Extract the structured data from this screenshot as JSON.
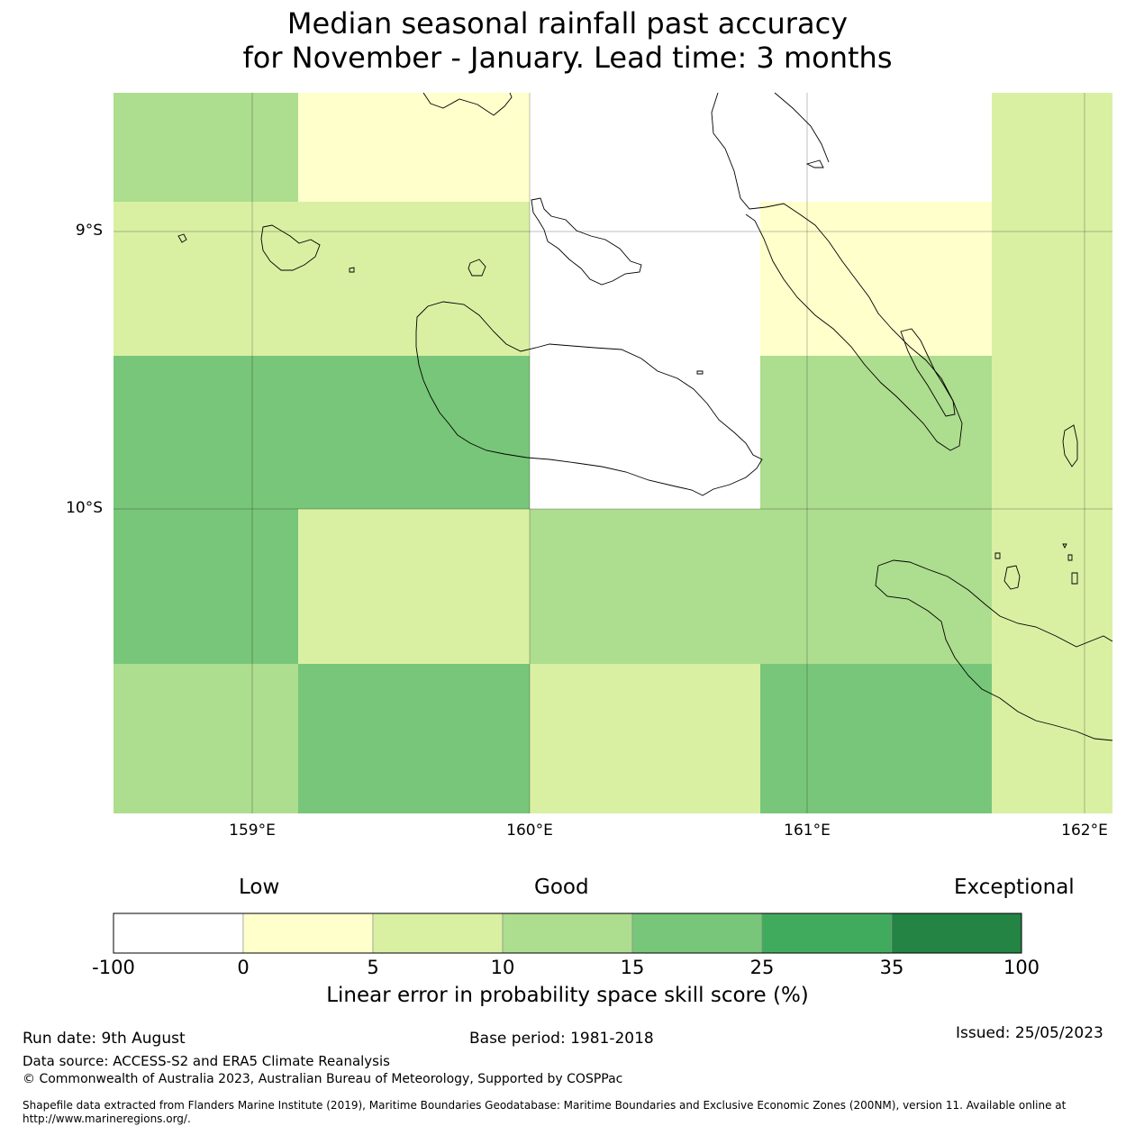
{
  "title": {
    "line1": "Median seasonal rainfall past accuracy",
    "line2": "for November - January. Lead time: 3 months"
  },
  "map": {
    "latitude_labels": [
      "9°S",
      "10°S"
    ],
    "longitude_labels": [
      "159°E",
      "160°E",
      "161°E",
      "162°E"
    ],
    "grid_cells": [
      {
        "row": 0,
        "col": 0,
        "category": "10 to 15"
      },
      {
        "row": 0,
        "col": 1,
        "category": "0 to 5"
      },
      {
        "row": 0,
        "col": 2,
        "category": "-100 to 0"
      },
      {
        "row": 0,
        "col": 3,
        "category": "-100 to 0"
      },
      {
        "row": 0,
        "col": 4,
        "category": "5 to 10"
      },
      {
        "row": 1,
        "col": 0,
        "category": "5 to 10"
      },
      {
        "row": 1,
        "col": 1,
        "category": "5 to 10"
      },
      {
        "row": 1,
        "col": 2,
        "category": "-100 to 0"
      },
      {
        "row": 1,
        "col": 3,
        "category": "0 to 5"
      },
      {
        "row": 1,
        "col": 4,
        "category": "5 to 10"
      },
      {
        "row": 2,
        "col": 0,
        "category": "15 to 25"
      },
      {
        "row": 2,
        "col": 1,
        "category": "15 to 25"
      },
      {
        "row": 2,
        "col": 2,
        "category": "-100 to 0"
      },
      {
        "row": 2,
        "col": 3,
        "category": "10 to 15"
      },
      {
        "row": 2,
        "col": 4,
        "category": "5 to 10"
      },
      {
        "row": 3,
        "col": 0,
        "category": "15 to 25"
      },
      {
        "row": 3,
        "col": 1,
        "category": "5 to 10"
      },
      {
        "row": 3,
        "col": 2,
        "category": "10 to 15"
      },
      {
        "row": 3,
        "col": 3,
        "category": "10 to 15"
      },
      {
        "row": 3,
        "col": 4,
        "category": "5 to 10"
      },
      {
        "row": 4,
        "col": 0,
        "category": "10 to 15"
      },
      {
        "row": 4,
        "col": 1,
        "category": "15 to 25"
      },
      {
        "row": 4,
        "col": 2,
        "category": "5 to 10"
      },
      {
        "row": 4,
        "col": 3,
        "category": "15 to 25"
      },
      {
        "row": 4,
        "col": 4,
        "category": "5 to 10"
      }
    ]
  },
  "legend": {
    "categories": [
      "Low",
      "Good",
      "Exceptional"
    ],
    "ticks": [
      "-100",
      "0",
      "5",
      "10",
      "15",
      "25",
      "35",
      "100"
    ],
    "colors": [
      "#ffffff",
      "#ffffcc",
      "#d9f0a3",
      "#addd8e",
      "#78c679",
      "#41ab5d",
      "#238443"
    ],
    "title": "Linear error in probability space skill score (%)"
  },
  "footer": {
    "run_date": "Run date: 9th August",
    "base_period": "Base period: 1981-2018",
    "issued": "Issued: 25/05/2023",
    "data_source": "Data source: ACCESS-S2 and ERA5 Climate Reanalysis",
    "copyright": "© Commonwealth of Australia 2023, Australian Bureau of Meteorology, Supported by COSPPac",
    "shapefile": "Shapefile data extracted from Flanders Marine Institute (2019), Maritime Boundaries Geodatabase: Maritime Boundaries and Exclusive Economic Zones (200NM), version 11. Available online at http://www.marineregions.org/."
  }
}
